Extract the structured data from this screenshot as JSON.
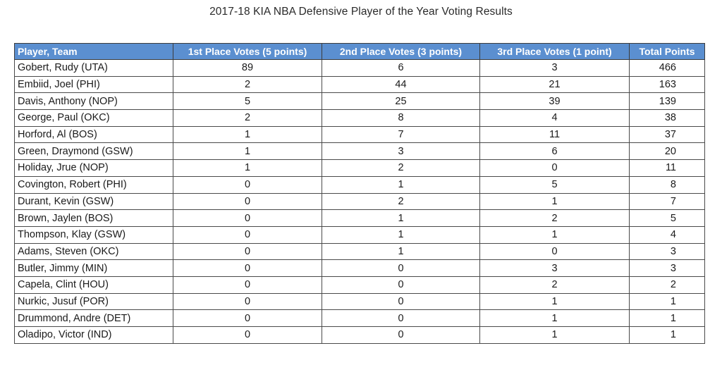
{
  "title": "2017-18 KIA NBA Defensive Player of the Year Voting Results",
  "columns": [
    "Player, Team",
    "1st Place Votes (5 points)",
    "2nd Place Votes (3 points)",
    "3rd Place Votes (1 point)",
    "Total Points"
  ],
  "rows": [
    [
      "Gobert, Rudy (UTA)",
      "89",
      "6",
      "3",
      "466"
    ],
    [
      "Embiid, Joel (PHI)",
      "2",
      "44",
      "21",
      "163"
    ],
    [
      "Davis, Anthony (NOP)",
      "5",
      "25",
      "39",
      "139"
    ],
    [
      "George, Paul (OKC)",
      "2",
      "8",
      "4",
      "38"
    ],
    [
      "Horford, Al (BOS)",
      "1",
      "7",
      "11",
      "37"
    ],
    [
      "Green, Draymond (GSW)",
      "1",
      "3",
      "6",
      "20"
    ],
    [
      "Holiday, Jrue (NOP)",
      "1",
      "2",
      "0",
      "11"
    ],
    [
      "Covington, Robert (PHI)",
      "0",
      "1",
      "5",
      "8"
    ],
    [
      "Durant, Kevin (GSW)",
      "0",
      "2",
      "1",
      "7"
    ],
    [
      "Brown, Jaylen (BOS)",
      "0",
      "1",
      "2",
      "5"
    ],
    [
      "Thompson, Klay (GSW)",
      "0",
      "1",
      "1",
      "4"
    ],
    [
      "Adams, Steven (OKC)",
      "0",
      "1",
      "0",
      "3"
    ],
    [
      "Butler, Jimmy (MIN)",
      "0",
      "0",
      "3",
      "3"
    ],
    [
      "Capela, Clint (HOU)",
      "0",
      "0",
      "2",
      "2"
    ],
    [
      "Nurkic, Jusuf (POR)",
      "0",
      "0",
      "1",
      "1"
    ],
    [
      "Drummond, Andre (DET)",
      "0",
      "0",
      "1",
      "1"
    ],
    [
      "Oladipo, Victor (IND)",
      "0",
      "0",
      "1",
      "1"
    ]
  ],
  "colors": {
    "header_bg": "#5b8fd0",
    "header_text": "#ffffff",
    "grid": "#4a4a4a"
  }
}
